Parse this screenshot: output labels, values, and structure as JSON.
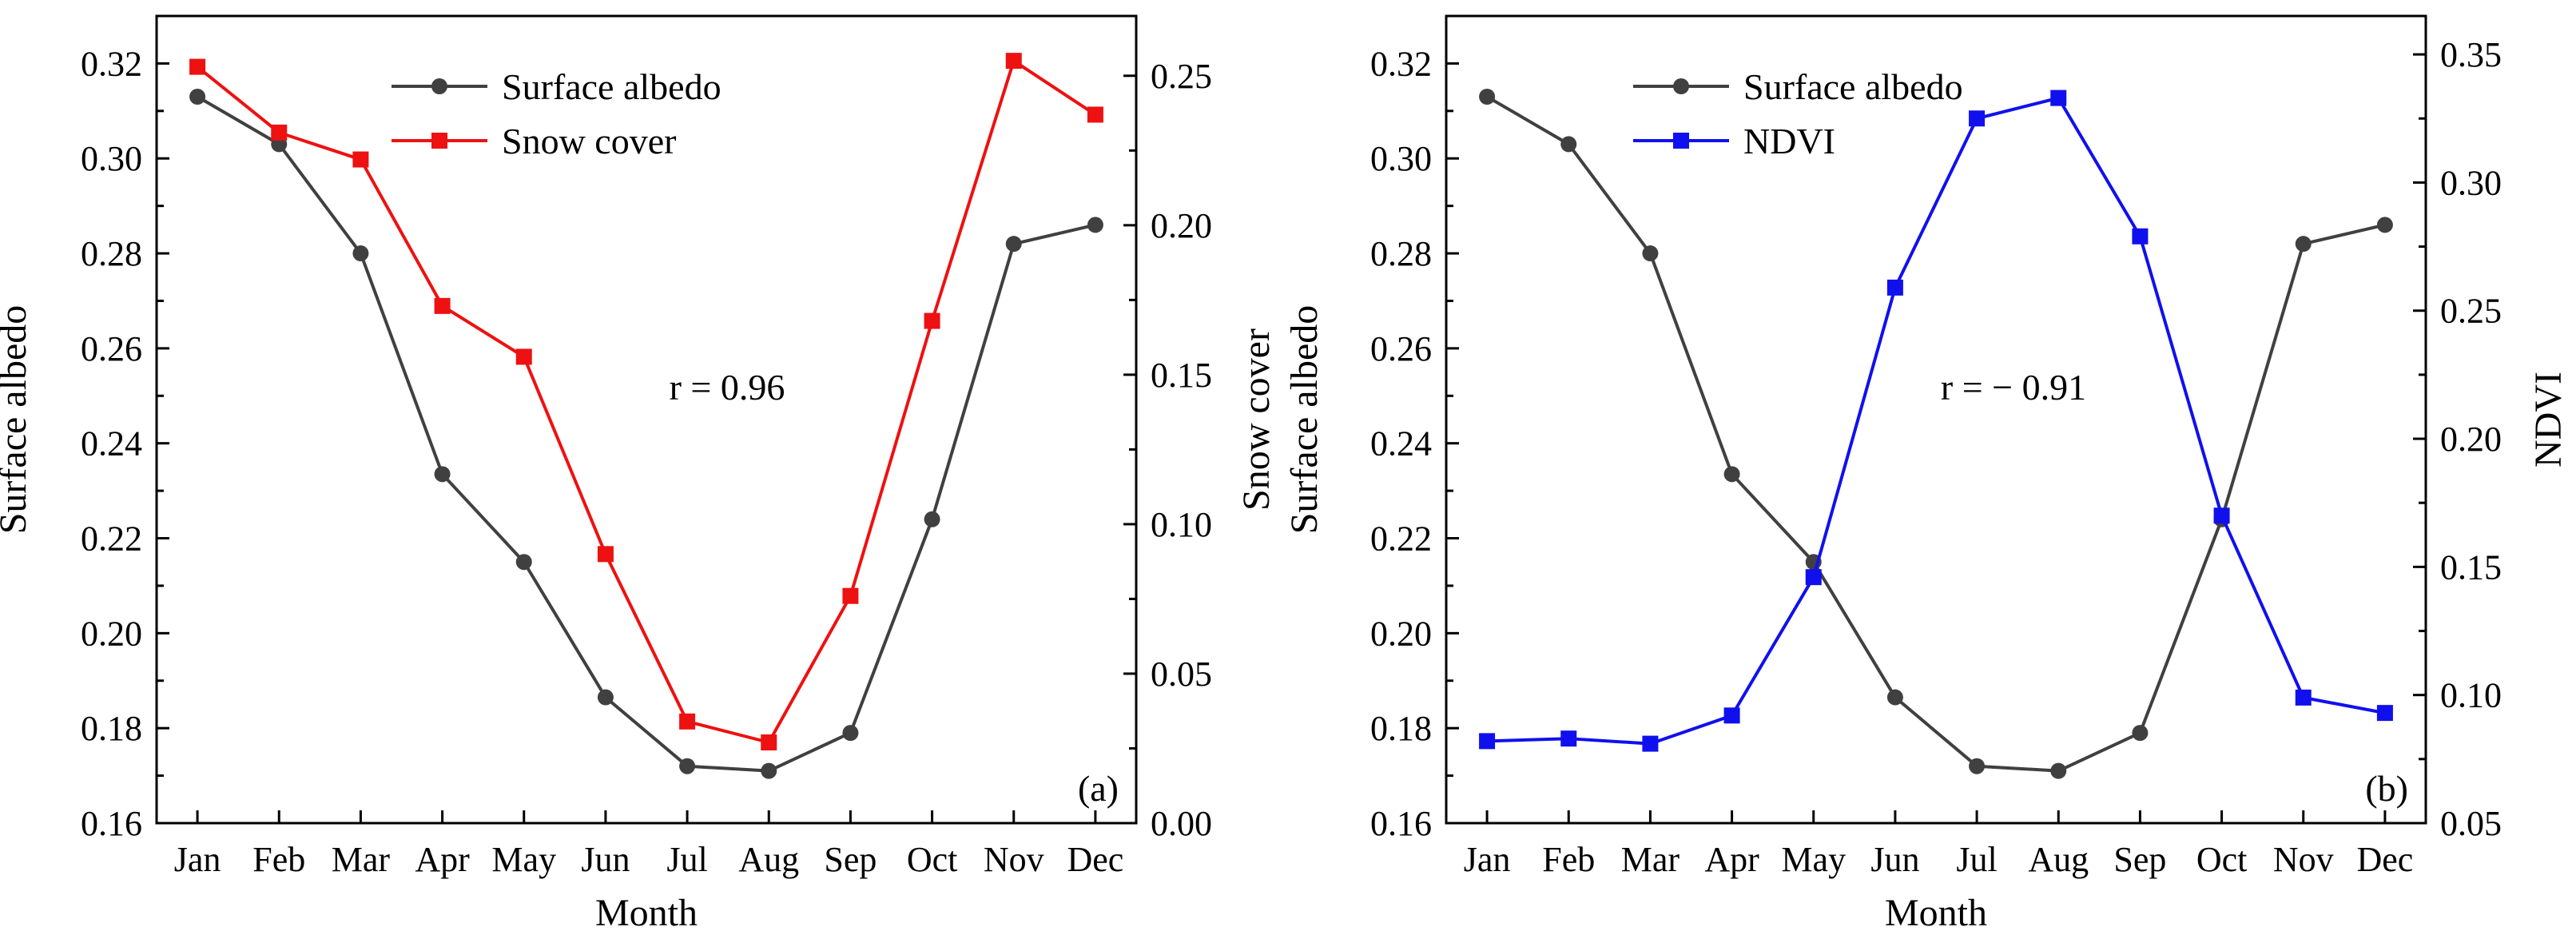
{
  "chart_data": [
    {
      "type": "line",
      "panel_label": "(a)",
      "categories": [
        "Jan",
        "Feb",
        "Mar",
        "Apr",
        "May",
        "Jun",
        "Jul",
        "Aug",
        "Sep",
        "Oct",
        "Nov",
        "Dec"
      ],
      "xlabel": "Month",
      "ylabel_left": "Surface albedo",
      "ylabel_right": "Snow cover",
      "ylim_left": [
        0.16,
        0.33
      ],
      "ylim_right": [
        0.0,
        0.27
      ],
      "yticks_left": [
        "0.16",
        "0.18",
        "0.20",
        "0.22",
        "0.24",
        "0.26",
        "0.28",
        "0.30",
        "0.32"
      ],
      "yticks_right": [
        "0.00",
        "0.05",
        "0.10",
        "0.15",
        "0.20",
        "0.25"
      ],
      "annotation": "r = 0.96",
      "legend_position": "top-left",
      "series": [
        {
          "name": "Surface albedo",
          "axis": "left",
          "color": "#404040",
          "marker": "circle",
          "values": [
            0.313,
            0.303,
            0.28,
            0.2335,
            0.215,
            0.1865,
            0.172,
            0.171,
            0.179,
            0.224,
            0.282,
            0.286
          ]
        },
        {
          "name": "Snow cover",
          "axis": "right",
          "color": "#ee1111",
          "marker": "square",
          "values": [
            0.253,
            0.231,
            0.222,
            0.173,
            0.156,
            0.09,
            0.034,
            0.027,
            0.076,
            0.168,
            0.255,
            0.237
          ]
        }
      ]
    },
    {
      "type": "line",
      "panel_label": "(b)",
      "categories": [
        "Jan",
        "Feb",
        "Mar",
        "Apr",
        "May",
        "Jun",
        "Jul",
        "Aug",
        "Sep",
        "Oct",
        "Nov",
        "Dec"
      ],
      "xlabel": "Month",
      "ylabel_left": "Surface albedo",
      "ylabel_right": "NDVI",
      "ylim_left": [
        0.16,
        0.33
      ],
      "ylim_right": [
        0.05,
        0.365
      ],
      "yticks_left": [
        "0.16",
        "0.18",
        "0.20",
        "0.22",
        "0.24",
        "0.26",
        "0.28",
        "0.30",
        "0.32"
      ],
      "yticks_right": [
        "0.05",
        "0.10",
        "0.15",
        "0.20",
        "0.25",
        "0.30",
        "0.35"
      ],
      "annotation": "r = − 0.91",
      "legend_position": "top-left",
      "series": [
        {
          "name": "Surface albedo",
          "axis": "left",
          "color": "#404040",
          "marker": "circle",
          "values": [
            0.313,
            0.303,
            0.28,
            0.2335,
            0.215,
            0.1865,
            0.172,
            0.171,
            0.179,
            0.224,
            0.282,
            0.286
          ]
        },
        {
          "name": "NDVI",
          "axis": "right",
          "color": "#1010ee",
          "marker": "square",
          "values": [
            0.082,
            0.083,
            0.081,
            0.092,
            0.146,
            0.259,
            0.325,
            0.333,
            0.279,
            0.17,
            0.099,
            0.093
          ]
        }
      ]
    }
  ]
}
